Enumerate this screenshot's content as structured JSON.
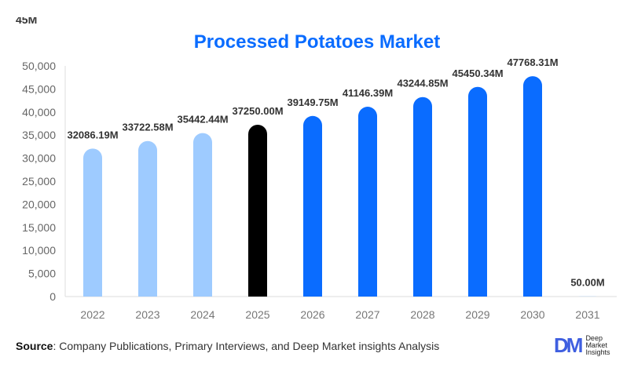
{
  "chart_data": {
    "type": "bar",
    "title": "Processed Potatoes Market",
    "categories": [
      "2022",
      "2023",
      "2024",
      "2025",
      "2026",
      "2027",
      "2028",
      "2029",
      "2030",
      "2031"
    ],
    "values": [
      32086.19,
      33722.58,
      35442.44,
      37250.0,
      39149.75,
      41146.39,
      43244.85,
      45450.34,
      47768.31,
      50.0
    ],
    "data_labels": [
      "32086.19M",
      "33722.58M",
      "35442.44M",
      "37250.00M",
      "39149.75M",
      "41146.39M",
      "43244.85M",
      "45450.34M",
      "47768.31M",
      "50.00M"
    ],
    "clipped_label": "45M",
    "ylim": [
      0,
      50000
    ],
    "yticks": [
      0,
      5000,
      10000,
      15000,
      20000,
      25000,
      30000,
      35000,
      40000,
      45000,
      50000
    ],
    "ytick_labels": [
      "0",
      "5,000",
      "10,000",
      "15,000",
      "20,000",
      "25,000",
      "30,000",
      "35,000",
      "40,000",
      "45,000",
      "50,000"
    ],
    "grid": false,
    "colors": {
      "historical": "#9ecbff",
      "current": "#000000",
      "forecast": "#0a6cff",
      "title": "#0a6cff"
    },
    "bar_color_groups": [
      "historical",
      "historical",
      "historical",
      "current",
      "forecast",
      "forecast",
      "forecast",
      "forecast",
      "forecast",
      "historical"
    ]
  },
  "footer": {
    "source_label": "Source",
    "source_text": ": Company Publications, Primary Interviews, and Deep Market insights Analysis",
    "logo_mark": "DM",
    "logo_lines": [
      "Deep",
      "Market",
      "Insights"
    ]
  }
}
